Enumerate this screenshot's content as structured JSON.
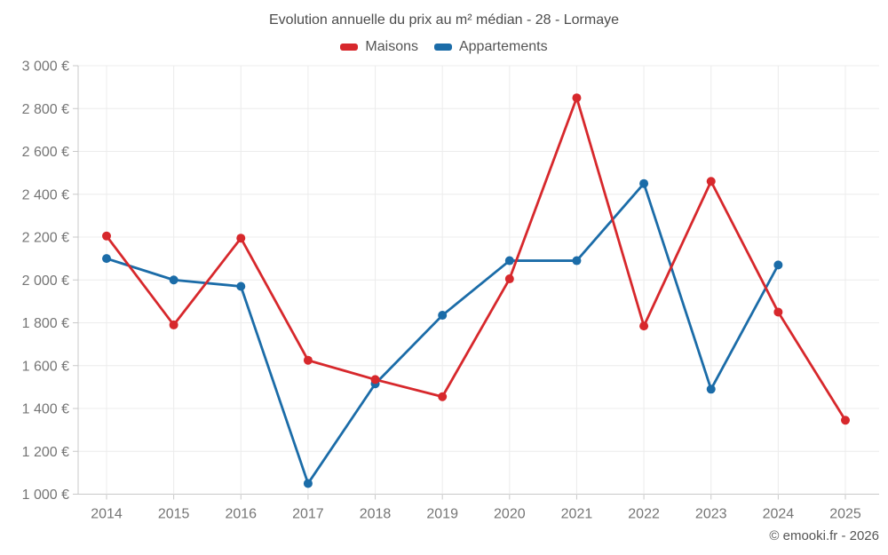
{
  "page": {
    "footer": "© emooki.fr - 2026"
  },
  "chart_data": {
    "type": "line",
    "title": "Evolution annuelle du prix au m² médian - 28 - Lormaye",
    "x": [
      2014,
      2015,
      2016,
      2017,
      2018,
      2019,
      2020,
      2021,
      2022,
      2023,
      2024,
      2025
    ],
    "series": [
      {
        "name": "Maisons",
        "color": "#d7282c",
        "values": [
          2205,
          1790,
          2195,
          1625,
          1535,
          1455,
          2005,
          2850,
          1785,
          2460,
          1850,
          1345
        ]
      },
      {
        "name": "Appartements",
        "color": "#1b6ca8",
        "values": [
          2100,
          2000,
          1970,
          1050,
          1515,
          1835,
          2090,
          2090,
          2450,
          1490,
          2070,
          null
        ]
      }
    ],
    "ylim": [
      1000,
      3000
    ],
    "ytick_step": 200,
    "ytick_suffix": " €",
    "grid": true,
    "legend_position": "top",
    "point_radius": 5,
    "line_width": 2.8,
    "grid_color": "#ececec",
    "axis_color": "#c9c9c9",
    "label_color": "#757575"
  }
}
